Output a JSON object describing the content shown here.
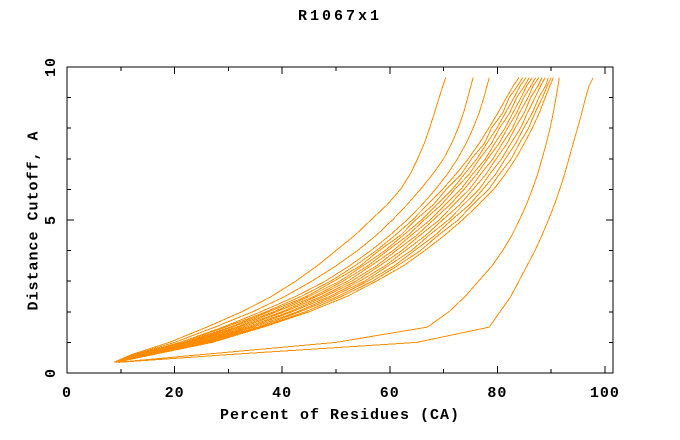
{
  "chart_data": {
    "type": "line",
    "title": "R1067x1",
    "xlabel": "Percent of Residues (CA)",
    "ylabel": "Distance Cutoff, A",
    "xlim": [
      0,
      101.5
    ],
    "ylim": [
      0,
      10
    ],
    "x_major_ticks": [
      0,
      20,
      40,
      60,
      80,
      100
    ],
    "x_minor_ticks": [
      10,
      30,
      50,
      70,
      90
    ],
    "y_major_ticks": [
      0,
      5,
      10
    ],
    "y_minor_ticks": [
      1,
      2,
      3,
      4,
      6,
      7,
      8,
      9
    ],
    "grid": false,
    "legend": "none",
    "background_color": "#ffffff",
    "axis_color": "#000000",
    "line_color": "#ff8c00",
    "cutoffs": [
      0.35,
      0.6,
      1,
      1.5,
      2,
      2.5,
      3,
      3.5,
      4,
      4.5,
      5,
      5.5,
      6,
      6.5,
      7,
      7.5,
      8,
      8.5,
      9,
      9.4,
      9.65
    ],
    "series": [
      [
        8.7,
        12,
        19,
        26,
        32.5,
        38,
        42.5,
        46.5,
        50,
        53.5,
        56.5,
        59.5,
        62,
        63.8,
        65.2,
        66.4,
        67.4,
        68.3,
        69.2,
        69.9,
        70.4
      ],
      [
        8.8,
        12.5,
        20,
        27.5,
        34.5,
        40.5,
        45.5,
        50,
        54,
        57.5,
        60.5,
        63.2,
        65.7,
        68,
        70,
        71.5,
        72.7,
        73.7,
        74.5,
        75.1,
        75.5
      ],
      [
        9,
        13,
        21,
        29,
        36,
        42.5,
        48,
        52.5,
        56.5,
        60,
        63.2,
        66,
        68.5,
        70.7,
        72.6,
        74.2,
        75.5,
        76.6,
        77.5,
        78.1,
        78.5
      ],
      [
        9,
        13.5,
        21,
        29.5,
        37,
        43.5,
        49,
        53.5,
        57.5,
        61,
        64.2,
        67,
        69.8,
        72.3,
        74.6,
        76.6,
        78.4,
        80.1,
        81.7,
        83,
        84
      ],
      [
        8.9,
        13.8,
        21.7,
        30.3,
        37.5,
        44.5,
        49.6,
        54.5,
        58,
        62,
        64.8,
        68.1,
        70.5,
        73.3,
        75.2,
        77.6,
        78.9,
        81,
        82.2,
        83.8,
        84.7
      ],
      [
        9.1,
        13.9,
        22.2,
        30.7,
        38.4,
        45,
        50.7,
        55,
        59.1,
        62.5,
        65.9,
        68.7,
        71.6,
        73.9,
        76.2,
        78,
        79.9,
        81.5,
        83.1,
        84.3,
        85.3
      ],
      [
        9,
        14.2,
        22.6,
        31.5,
        38.9,
        45.9,
        51.3,
        55.9,
        59.6,
        63.4,
        66.4,
        69.6,
        72.1,
        74.8,
        76.7,
        78.9,
        80.4,
        82.3,
        83.6,
        85.1,
        85.9
      ],
      [
        9.2,
        14.4,
        23.2,
        32,
        39.9,
        46.4,
        52.2,
        56.5,
        60.6,
        64,
        67.5,
        70.3,
        73.2,
        75.4,
        77.8,
        79.5,
        81.4,
        82.9,
        84.4,
        85.5,
        86.5
      ],
      [
        9,
        14.6,
        23.7,
        32.7,
        40.4,
        47.3,
        52.9,
        57.5,
        61.2,
        65,
        68.1,
        71.2,
        73.8,
        76.2,
        78.2,
        80.3,
        81.9,
        83.6,
        84.9,
        86.3,
        87.1
      ],
      [
        9.1,
        14.9,
        24.3,
        33.4,
        41.3,
        47.9,
        53.7,
        58.1,
        62.2,
        65.6,
        69.2,
        71.9,
        74.8,
        76.9,
        79.2,
        80.9,
        82.8,
        84.1,
        85.7,
        86.7,
        87.7
      ],
      [
        9,
        15.1,
        24.8,
        34.1,
        41.8,
        48.8,
        54.4,
        59.1,
        62.9,
        66.7,
        69.8,
        73,
        75.5,
        77.9,
        79.8,
        81.8,
        83.3,
        85,
        86.2,
        87.6,
        88.3
      ],
      [
        9.2,
        15.3,
        25.4,
        34.7,
        42.8,
        49.4,
        55.3,
        59.7,
        64,
        67.3,
        70.9,
        73.7,
        76.6,
        78.6,
        80.8,
        82.5,
        84.3,
        85.6,
        87,
        88.1,
        88.9
      ],
      [
        9.1,
        15.6,
        25.9,
        35.5,
        43.3,
        50.3,
        55.9,
        60.8,
        64.6,
        68.4,
        71.5,
        74.8,
        77.3,
        79.7,
        81.5,
        83.4,
        84.9,
        86.5,
        87.7,
        89,
        89.5
      ],
      [
        9,
        15.8,
        26.5,
        36,
        44.3,
        51,
        56.8,
        61.4,
        65.7,
        69,
        72.7,
        75.4,
        78.4,
        80.4,
        82.6,
        84.1,
        85.8,
        87,
        88.4,
        89.3,
        90
      ],
      [
        9.2,
        16,
        27,
        36.5,
        45,
        52,
        57.5,
        62.5,
        66.5,
        70.2,
        73.5,
        76.5,
        79.3,
        81.5,
        83.4,
        85,
        86.5,
        87.8,
        88.9,
        89.8,
        90.4
      ],
      [
        9.5,
        25,
        50,
        67,
        71,
        74,
        76.5,
        79,
        81,
        82.7,
        84.1,
        85.4,
        86.5,
        87.5,
        88.3,
        89.1,
        89.8,
        90.4,
        90.9,
        91.3,
        91.5
      ],
      [
        9.7,
        30,
        65,
        78.5,
        80.5,
        82.5,
        84,
        85.5,
        87,
        88.3,
        89.5,
        90.6,
        91.6,
        92.5,
        93.3,
        94.1,
        94.9,
        95.7,
        96.4,
        97.1,
        97.8
      ]
    ]
  }
}
